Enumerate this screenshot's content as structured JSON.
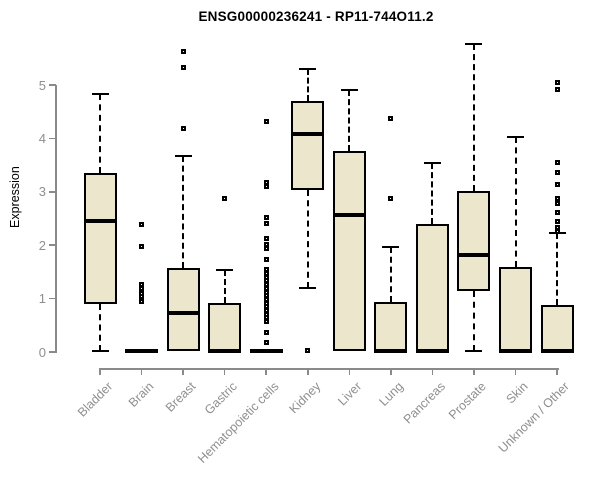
{
  "title": "ENSG00000236241 - RP11-744O11.2",
  "colors": {
    "box_fill": "#ece7cc",
    "box_border": "#000000",
    "axis_color": "#8a8a8a",
    "text_gray": "#8f8f8f",
    "title_color": "#000000",
    "background": "#ffffff"
  },
  "chart_data": {
    "type": "boxplot",
    "title": "ENSG00000236241 - RP11-744O11.2",
    "xlabel": "",
    "ylabel": "Expression",
    "ylim": [
      0,
      5
    ],
    "yticks": [
      0,
      1,
      2,
      3,
      4,
      5
    ],
    "grid": false,
    "legend": false,
    "categories": [
      "Bladder",
      "Brain",
      "Breast",
      "Gastric",
      "Hematopoietic cells",
      "Kidney",
      "Liver",
      "Lung",
      "Pancreas",
      "Prostate",
      "Skin",
      "Unknown / Other"
    ],
    "series": [
      {
        "name": "Bladder",
        "min": 0.02,
        "q1": 0.9,
        "median": 2.45,
        "q3": 3.35,
        "max": 4.83,
        "outliers": []
      },
      {
        "name": "Brain",
        "min": 0.0,
        "q1": 0.0,
        "median": 0.02,
        "q3": 0.05,
        "max": 0.05,
        "outliers": [
          2.38,
          1.97,
          1.27,
          1.19,
          1.1,
          1.03,
          0.94
        ]
      },
      {
        "name": "Breast",
        "min": 0.0,
        "q1": 0.02,
        "median": 0.73,
        "q3": 1.57,
        "max": 3.67,
        "outliers": [
          5.62,
          5.32,
          4.19
        ]
      },
      {
        "name": "Gastric",
        "min": 0.0,
        "q1": 0.0,
        "median": 0.02,
        "q3": 0.92,
        "max": 1.54,
        "outliers": [
          2.87
        ]
      },
      {
        "name": "Hematopoietic cells",
        "min": 0.0,
        "q1": 0.0,
        "median": 0.02,
        "q3": 0.05,
        "max": 0.05,
        "outliers": [
          4.31,
          3.18,
          3.09,
          2.51,
          2.4,
          2.13,
          2.02,
          1.93,
          1.74,
          1.54,
          1.47,
          1.4,
          1.33,
          1.26,
          1.19,
          1.12,
          1.05,
          0.98,
          0.91,
          0.85,
          0.78,
          0.71,
          0.64,
          0.57,
          0.36,
          0.17
        ]
      },
      {
        "name": "Kidney",
        "min": 1.2,
        "q1": 3.03,
        "median": 4.08,
        "q3": 4.7,
        "max": 5.3,
        "outliers": [
          0.02
        ]
      },
      {
        "name": "Liver",
        "min": 0.0,
        "q1": 0.02,
        "median": 2.57,
        "q3": 3.76,
        "max": 4.91,
        "outliers": []
      },
      {
        "name": "Lung",
        "min": 0.0,
        "q1": 0.0,
        "median": 0.02,
        "q3": 0.94,
        "max": 1.97,
        "outliers": [
          4.38,
          2.87
        ]
      },
      {
        "name": "Pancreas",
        "min": 0.0,
        "q1": 0.0,
        "median": 0.02,
        "q3": 2.4,
        "max": 3.54,
        "outliers": []
      },
      {
        "name": "Prostate",
        "min": 0.02,
        "q1": 1.14,
        "median": 1.82,
        "q3": 3.01,
        "max": 5.77,
        "outliers": []
      },
      {
        "name": "Skin",
        "min": 0.0,
        "q1": 0.0,
        "median": 0.02,
        "q3": 1.59,
        "max": 4.03,
        "outliers": []
      },
      {
        "name": "Unknown / Other",
        "min": 0.0,
        "q1": 0.0,
        "median": 0.02,
        "q3": 0.88,
        "max": 2.23,
        "outliers": [
          5.04,
          4.91,
          3.54,
          3.37,
          3.13,
          2.88,
          2.79,
          2.62,
          2.45,
          2.34,
          2.26
        ]
      }
    ]
  }
}
